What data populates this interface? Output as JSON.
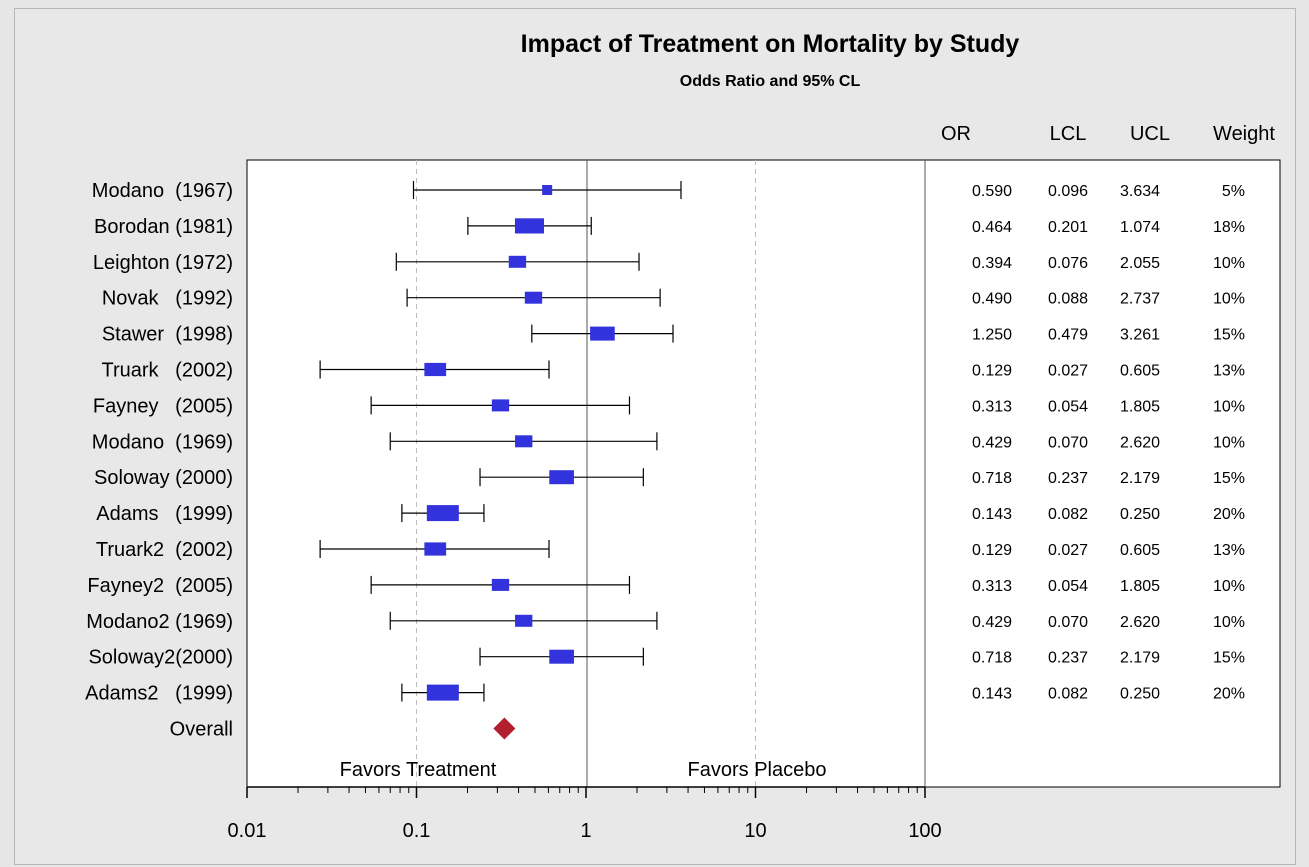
{
  "chart_data": {
    "type": "forest",
    "title": "Impact of Treatment on Mortality by Study",
    "subtitle": "Odds Ratio and 95% CL",
    "x_scale": "log",
    "xlim": [
      0.01,
      100
    ],
    "x_ticks": [
      "0.01",
      "0.1",
      "1",
      "10",
      "100"
    ],
    "reference_lines": [
      0.1,
      1,
      10
    ],
    "annotations": [
      "Favors Treatment",
      "Favors Placebo"
    ],
    "columns": [
      "OR",
      "LCL",
      "UCL",
      "Weight"
    ],
    "studies": [
      {
        "label": "Modano  (1967)",
        "or": "0.590",
        "lcl": "0.096",
        "ucl": "3.634",
        "weight": "5%",
        "w": 0.05
      },
      {
        "label": "Borodan (1981)",
        "or": "0.464",
        "lcl": "0.201",
        "ucl": "1.074",
        "weight": "18%",
        "w": 0.18
      },
      {
        "label": "Leighton (1972)",
        "or": "0.394",
        "lcl": "0.076",
        "ucl": "2.055",
        "weight": "10%",
        "w": 0.1
      },
      {
        "label": "Novak   (1992)",
        "or": "0.490",
        "lcl": "0.088",
        "ucl": "2.737",
        "weight": "10%",
        "w": 0.1
      },
      {
        "label": "Stawer  (1998)",
        "or": "1.250",
        "lcl": "0.479",
        "ucl": "3.261",
        "weight": "15%",
        "w": 0.15
      },
      {
        "label": "Truark   (2002)",
        "or": "0.129",
        "lcl": "0.027",
        "ucl": "0.605",
        "weight": "13%",
        "w": 0.13
      },
      {
        "label": "Fayney   (2005)",
        "or": "0.313",
        "lcl": "0.054",
        "ucl": "1.805",
        "weight": "10%",
        "w": 0.1
      },
      {
        "label": "Modano  (1969)",
        "or": "0.429",
        "lcl": "0.070",
        "ucl": "2.620",
        "weight": "10%",
        "w": 0.1
      },
      {
        "label": "Soloway (2000)",
        "or": "0.718",
        "lcl": "0.237",
        "ucl": "2.179",
        "weight": "15%",
        "w": 0.15
      },
      {
        "label": "Adams   (1999)",
        "or": "0.143",
        "lcl": "0.082",
        "ucl": "0.250",
        "weight": "20%",
        "w": 0.2
      },
      {
        "label": "Truark2  (2002)",
        "or": "0.129",
        "lcl": "0.027",
        "ucl": "0.605",
        "weight": "13%",
        "w": 0.13
      },
      {
        "label": "Fayney2  (2005)",
        "or": "0.313",
        "lcl": "0.054",
        "ucl": "1.805",
        "weight": "10%",
        "w": 0.1
      },
      {
        "label": "Modano2 (1969)",
        "or": "0.429",
        "lcl": "0.070",
        "ucl": "2.620",
        "weight": "10%",
        "w": 0.1
      },
      {
        "label": "Soloway2(2000)",
        "or": "0.718",
        "lcl": "0.237",
        "ucl": "2.179",
        "weight": "15%",
        "w": 0.15
      },
      {
        "label": "Adams2   (1999)",
        "or": "0.143",
        "lcl": "0.082",
        "ucl": "0.250",
        "weight": "20%",
        "w": 0.2
      }
    ],
    "overall": {
      "label": "Overall",
      "or": 0.33
    },
    "colors": {
      "study_marker": "#3333dd",
      "overall_marker": "#b21f2d",
      "ref_line": "#bdbdbd"
    }
  }
}
